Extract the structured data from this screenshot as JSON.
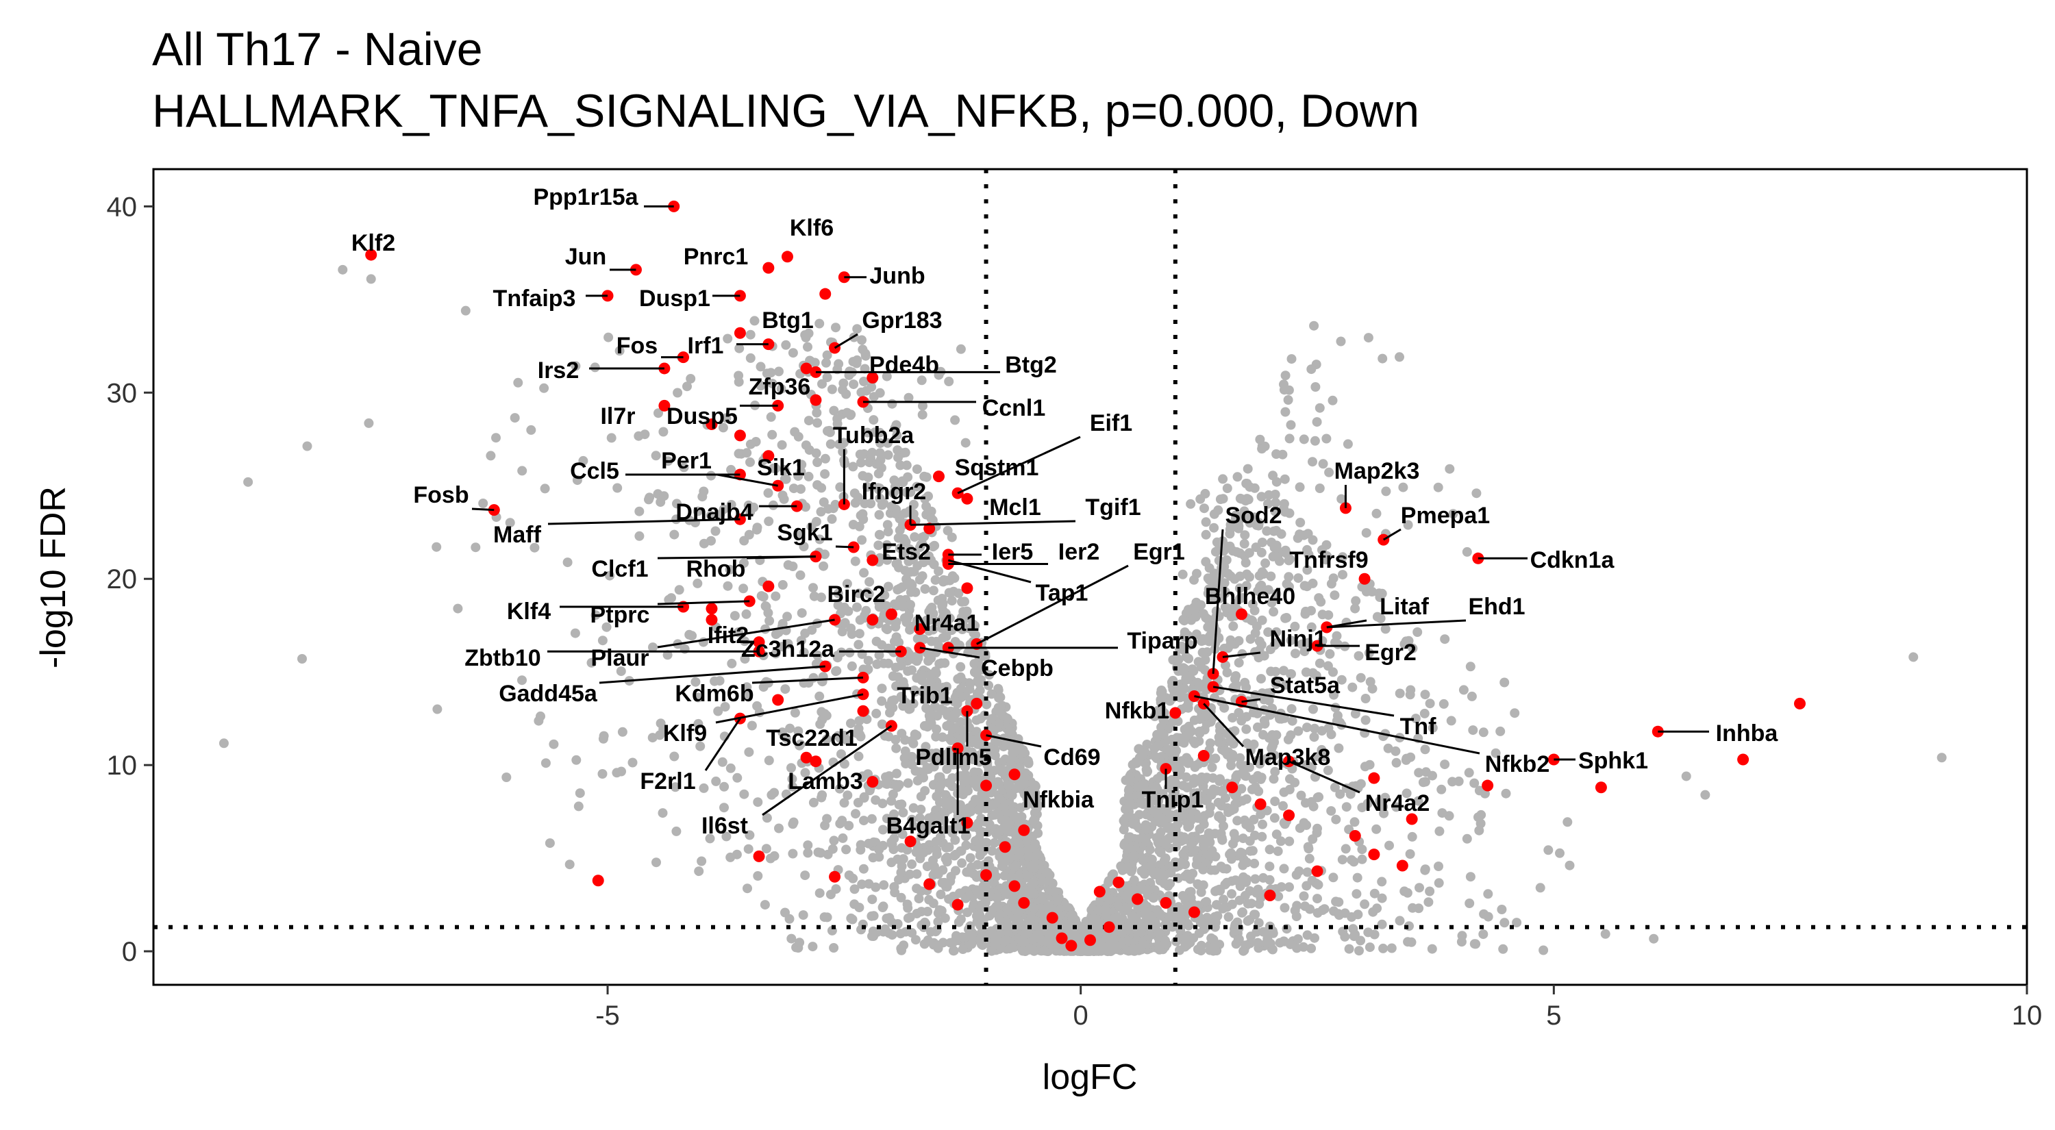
{
  "chart_data": {
    "type": "scatter",
    "title": "All Th17 - Naive",
    "subtitle": "HALLMARK_TNFA_SIGNALING_VIA_NFKB, p=0.000, Down",
    "xlabel": "logFC",
    "ylabel": "-log10 FDR",
    "xlim": [
      -9.8,
      10
    ],
    "ylim": [
      -1.8,
      42
    ],
    "xticks": [
      -5,
      0,
      5,
      10
    ],
    "yticks": [
      0,
      10,
      20,
      30,
      40
    ],
    "xtick_labels": [
      "-5",
      "0",
      "5",
      "10"
    ],
    "ytick_labels": [
      "0",
      "10",
      "20",
      "30",
      "40"
    ],
    "vlines": [
      -1,
      1
    ],
    "hline": 1.3,
    "grid": false,
    "legend": "none",
    "background_color": "#b3b3b3",
    "highlight_color": "#ff0000",
    "labeled_genes": [
      {
        "gene": "Klf2",
        "x": -7.5,
        "y": 37.4
      },
      {
        "gene": "Ppp1r15a",
        "x": -4.3,
        "y": 40.0
      },
      {
        "gene": "Jun",
        "x": -4.7,
        "y": 36.6
      },
      {
        "gene": "Pnrc1",
        "x": -3.3,
        "y": 36.7
      },
      {
        "gene": "Klf6",
        "x": -3.1,
        "y": 37.3
      },
      {
        "gene": "Junb",
        "x": -2.5,
        "y": 36.2
      },
      {
        "gene": "Tnfaip3",
        "x": -5.0,
        "y": 35.2
      },
      {
        "gene": "Dusp1",
        "x": -3.6,
        "y": 35.2
      },
      {
        "gene": "Btg1",
        "x": -2.7,
        "y": 35.3
      },
      {
        "gene": "Gpr183",
        "x": -2.6,
        "y": 32.4
      },
      {
        "gene": "Fos",
        "x": -4.2,
        "y": 31.9
      },
      {
        "gene": "Irf1",
        "x": -3.3,
        "y": 32.6
      },
      {
        "gene": "Irs2",
        "x": -4.4,
        "y": 31.3
      },
      {
        "gene": "Pde4b",
        "x": -2.2,
        "y": 30.8
      },
      {
        "gene": "Btg2",
        "x": -2.8,
        "y": 31.1
      },
      {
        "gene": "Zfp36",
        "x": -2.8,
        "y": 29.6
      },
      {
        "gene": "Ccnl1",
        "x": -2.3,
        "y": 29.5
      },
      {
        "gene": "Il7r",
        "x": -4.4,
        "y": 29.3
      },
      {
        "gene": "Dusp5",
        "x": -3.2,
        "y": 29.3
      },
      {
        "gene": "Eif1",
        "x": -1.3,
        "y": 24.6
      },
      {
        "gene": "Tubb2a",
        "x": -2.5,
        "y": 24.0
      },
      {
        "gene": "Sqstm1",
        "x": -1.5,
        "y": 25.5
      },
      {
        "gene": "Ccl5",
        "x": -3.6,
        "y": 25.6
      },
      {
        "gene": "Per1",
        "x": -3.2,
        "y": 25.0
      },
      {
        "gene": "Sik1",
        "x": -3.3,
        "y": 26.6
      },
      {
        "gene": "Fosb",
        "x": -6.2,
        "y": 23.7
      },
      {
        "gene": "Ifngr2",
        "x": -1.8,
        "y": 22.9
      },
      {
        "gene": "Mcl1",
        "x": -1.2,
        "y": 24.3
      },
      {
        "gene": "Tgif1",
        "x": -1.8,
        "y": 22.9
      },
      {
        "gene": "Dnajb4",
        "x": -3.0,
        "y": 23.9
      },
      {
        "gene": "Maff",
        "x": -3.6,
        "y": 23.2
      },
      {
        "gene": "Sgk1",
        "x": -2.4,
        "y": 21.7
      },
      {
        "gene": "Ets2",
        "x": -2.2,
        "y": 21.0
      },
      {
        "gene": "Ier5",
        "x": -1.4,
        "y": 21.3
      },
      {
        "gene": "Ier2",
        "x": -1.4,
        "y": 20.8
      },
      {
        "gene": "Egr1",
        "x": -1.1,
        "y": 16.5
      },
      {
        "gene": "Tap1",
        "x": -1.4,
        "y": 21.0
      },
      {
        "gene": "Clcf1",
        "x": -2.8,
        "y": 21.2
      },
      {
        "gene": "Rhob",
        "x": -2.8,
        "y": 21.2
      },
      {
        "gene": "Birc2",
        "x": -2.2,
        "y": 17.8
      },
      {
        "gene": "Klf4",
        "x": -4.2,
        "y": 18.5
      },
      {
        "gene": "Ptprc",
        "x": -3.5,
        "y": 18.8
      },
      {
        "gene": "Nr4a1",
        "x": -1.7,
        "y": 17.3
      },
      {
        "gene": "Ifit2",
        "x": -3.9,
        "y": 17.8
      },
      {
        "gene": "Tiparp",
        "x": -1.4,
        "y": 16.3
      },
      {
        "gene": "Zbtb10",
        "x": -3.4,
        "y": 16.1
      },
      {
        "gene": "Plaur",
        "x": -2.6,
        "y": 17.8
      },
      {
        "gene": "Zc3h12a",
        "x": -1.9,
        "y": 16.1
      },
      {
        "gene": "Cebpb",
        "x": -1.7,
        "y": 16.3
      },
      {
        "gene": "Gadd45a",
        "x": -2.7,
        "y": 15.3
      },
      {
        "gene": "Kdm6b",
        "x": -2.3,
        "y": 14.7
      },
      {
        "gene": "Trib1",
        "x": -1.1,
        "y": 13.3
      },
      {
        "gene": "Klf9",
        "x": -2.3,
        "y": 13.8
      },
      {
        "gene": "Tsc22d1",
        "x": -2.3,
        "y": 12.9
      },
      {
        "gene": "F2rl1",
        "x": -3.6,
        "y": 12.5
      },
      {
        "gene": "Pdlim5",
        "x": -1.2,
        "y": 12.9
      },
      {
        "gene": "Cd69",
        "x": -1.0,
        "y": 11.6
      },
      {
        "gene": "Lamb3",
        "x": -2.9,
        "y": 10.4
      },
      {
        "gene": "Il6st",
        "x": -2.0,
        "y": 12.1
      },
      {
        "gene": "Nfkbia",
        "x": -0.7,
        "y": 9.5
      },
      {
        "gene": "B4galt1",
        "x": -1.3,
        "y": 10.9
      },
      {
        "gene": "Tnip1",
        "x": 0.9,
        "y": 9.8
      },
      {
        "gene": "Nfkb1",
        "x": 1.0,
        "y": 12.8
      },
      {
        "gene": "Sod2",
        "x": 1.4,
        "y": 14.9
      },
      {
        "gene": "Map2k3",
        "x": 2.8,
        "y": 23.8
      },
      {
        "gene": "Pmepa1",
        "x": 3.2,
        "y": 22.1
      },
      {
        "gene": "Tnfrsf9",
        "x": 3.0,
        "y": 20.0
      },
      {
        "gene": "Cdkn1a",
        "x": 4.2,
        "y": 21.1
      },
      {
        "gene": "Bhlhe40",
        "x": 1.7,
        "y": 18.1
      },
      {
        "gene": "Litaf",
        "x": 2.6,
        "y": 17.4
      },
      {
        "gene": "Ehd1",
        "x": 2.6,
        "y": 17.4
      },
      {
        "gene": "Ninj1",
        "x": 1.5,
        "y": 15.8
      },
      {
        "gene": "Egr2",
        "x": 2.5,
        "y": 16.4
      },
      {
        "gene": "Stat5a",
        "x": 1.7,
        "y": 13.4
      },
      {
        "gene": "Tnf",
        "x": 1.4,
        "y": 14.2
      },
      {
        "gene": "Map3k8",
        "x": 1.3,
        "y": 13.3
      },
      {
        "gene": "Nfkb2",
        "x": 1.2,
        "y": 13.7
      },
      {
        "gene": "Nr4a2",
        "x": 2.2,
        "y": 10.2
      },
      {
        "gene": "Sphk1",
        "x": 5.0,
        "y": 10.3
      },
      {
        "gene": "Inhba",
        "x": 6.1,
        "y": 11.8
      }
    ],
    "other_highlighted": [
      {
        "x": 7.6,
        "y": 13.3
      },
      {
        "x": 7.0,
        "y": 10.3
      },
      {
        "x": 5.5,
        "y": 8.8
      },
      {
        "x": 4.3,
        "y": 8.9
      },
      {
        "x": 3.1,
        "y": 9.3
      },
      {
        "x": 3.5,
        "y": 7.1
      },
      {
        "x": 3.1,
        "y": 5.2
      },
      {
        "x": 3.4,
        "y": 4.6
      },
      {
        "x": 2.9,
        "y": 6.2
      },
      {
        "x": 2.5,
        "y": 4.3
      },
      {
        "x": 2.2,
        "y": 7.3
      },
      {
        "x": 2.0,
        "y": 3.0
      },
      {
        "x": 1.6,
        "y": 8.8
      },
      {
        "x": 1.9,
        "y": 7.9
      },
      {
        "x": 1.3,
        "y": 10.5
      },
      {
        "x": 1.2,
        "y": 2.1
      },
      {
        "x": 0.9,
        "y": 2.6
      },
      {
        "x": 0.6,
        "y": 2.8
      },
      {
        "x": 0.4,
        "y": 3.7
      },
      {
        "x": 0.2,
        "y": 3.2
      },
      {
        "x": 0.3,
        "y": 1.3
      },
      {
        "x": 0.1,
        "y": 0.6
      },
      {
        "x": -0.1,
        "y": 0.3
      },
      {
        "x": -0.2,
        "y": 0.7
      },
      {
        "x": -0.3,
        "y": 1.8
      },
      {
        "x": -0.6,
        "y": 2.6
      },
      {
        "x": -0.7,
        "y": 3.5
      },
      {
        "x": -1.0,
        "y": 4.1
      },
      {
        "x": -1.3,
        "y": 2.5
      },
      {
        "x": -1.6,
        "y": 3.6
      },
      {
        "x": -0.8,
        "y": 5.6
      },
      {
        "x": -0.6,
        "y": 6.5
      },
      {
        "x": -1.2,
        "y": 6.9
      },
      {
        "x": -1.0,
        "y": 8.9
      },
      {
        "x": -1.8,
        "y": 5.9
      },
      {
        "x": -2.6,
        "y": 4.0
      },
      {
        "x": -3.4,
        "y": 5.1
      },
      {
        "x": -5.1,
        "y": 3.8
      },
      {
        "x": -2.2,
        "y": 9.1
      },
      {
        "x": -2.8,
        "y": 10.2
      },
      {
        "x": -3.2,
        "y": 13.5
      },
      {
        "x": -3.4,
        "y": 16.6
      },
      {
        "x": -2.0,
        "y": 18.1
      },
      {
        "x": -1.2,
        "y": 19.5
      },
      {
        "x": -3.3,
        "y": 19.6
      },
      {
        "x": -3.9,
        "y": 18.4
      },
      {
        "x": -1.6,
        "y": 22.7
      },
      {
        "x": -3.6,
        "y": 27.7
      },
      {
        "x": -3.9,
        "y": 28.3
      },
      {
        "x": -2.9,
        "y": 31.3
      },
      {
        "x": -3.6,
        "y": 33.2
      }
    ]
  }
}
